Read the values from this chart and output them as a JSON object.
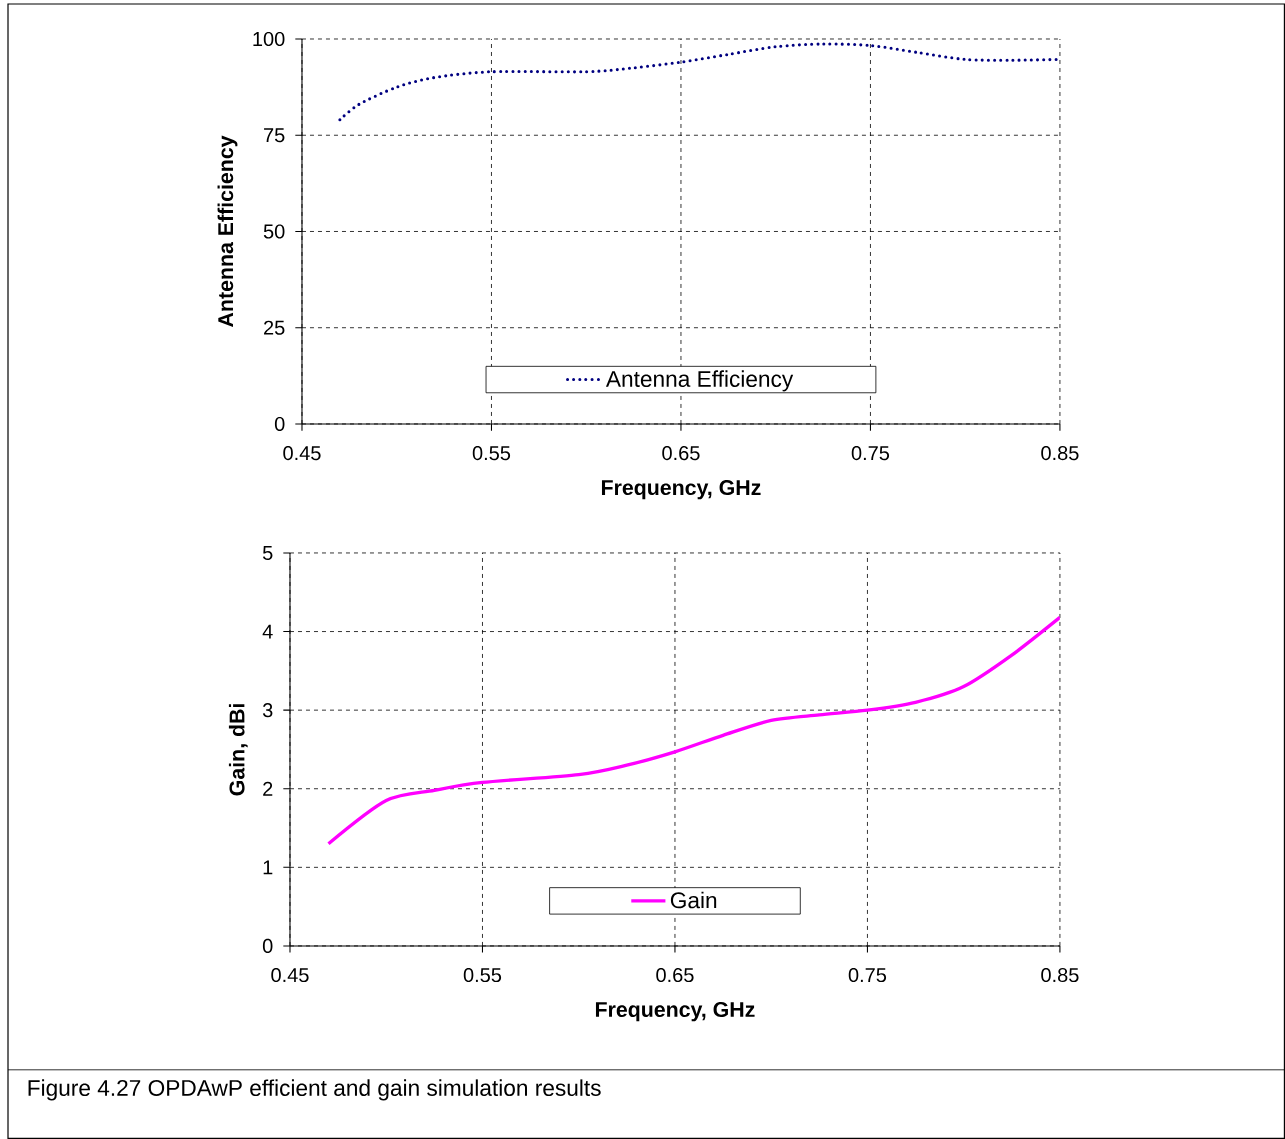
{
  "chart_data": [
    {
      "type": "line",
      "xlabel": "Frequency, GHz",
      "ylabel": "Antenna Efficiency",
      "x": [
        0.47,
        0.48,
        0.5,
        0.52,
        0.55,
        0.6,
        0.625,
        0.65,
        0.675,
        0.7,
        0.725,
        0.75,
        0.775,
        0.8,
        0.825,
        0.85
      ],
      "series": [
        {
          "name": "Antenna Efficiency",
          "color": "#000080",
          "values": [
            79,
            83,
            87.5,
            90,
            91.5,
            91.5,
            92.5,
            94,
            96,
            98,
            98.7,
            98.3,
            96.5,
            94.7,
            94.5,
            94.7
          ]
        }
      ],
      "xlim": [
        0.45,
        0.85
      ],
      "ylim": [
        0,
        100
      ],
      "xticks": [
        0.45,
        0.55,
        0.65,
        0.75,
        0.85
      ],
      "yticks": [
        0,
        25,
        50,
        75,
        100
      ],
      "grid": true,
      "legend": "bottom",
      "marker": "none",
      "line_style": "dotted"
    },
    {
      "type": "line",
      "xlabel": "Frequency, GHz",
      "ylabel": "Gain, dBi",
      "x": [
        0.47,
        0.5,
        0.525,
        0.55,
        0.6,
        0.625,
        0.65,
        0.675,
        0.7,
        0.725,
        0.75,
        0.775,
        0.8,
        0.825,
        0.85
      ],
      "series": [
        {
          "name": "Gain",
          "color": "#ff00ff",
          "values": [
            1.3,
            1.85,
            1.98,
            2.08,
            2.18,
            2.3,
            2.47,
            2.68,
            2.87,
            2.94,
            3.0,
            3.1,
            3.3,
            3.7,
            4.18
          ]
        }
      ],
      "xlim": [
        0.45,
        0.85
      ],
      "ylim": [
        0,
        5
      ],
      "xticks": [
        0.45,
        0.55,
        0.65,
        0.75,
        0.85
      ],
      "yticks": [
        0,
        1,
        2,
        3,
        4,
        5
      ],
      "grid": true,
      "legend": "bottom",
      "marker": "none",
      "line_style": "solid",
      "annotations": [
        "Figure 4.27 OPDAwP efficient and gain simulation results"
      ]
    }
  ]
}
